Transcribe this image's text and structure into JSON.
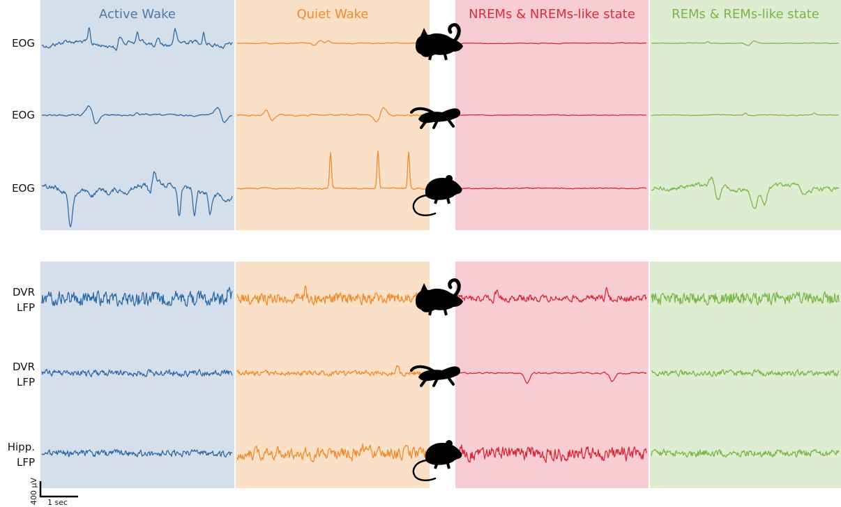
{
  "states": [
    {
      "key": "active_wake",
      "label": "Active Wake",
      "bg": "#d4dfeb",
      "trace": "#2e6aa6",
      "label_color": "#4a79aa"
    },
    {
      "key": "quiet_wake",
      "label": "Quiet Wake",
      "bg": "#fbe0c8",
      "trace": "#ef8b2c",
      "label_color": "#ef8b2c"
    },
    {
      "key": "nrem",
      "label": "NREMs & NREMs-like state",
      "bg": "#f7ccd3",
      "trace": "#d82a36",
      "label_color": "#d72f3a"
    },
    {
      "key": "rem",
      "label": "REMs & REMs-like state",
      "bg": "#deecd2",
      "trace": "#79b848",
      "label_color": "#7ab548"
    }
  ],
  "rows": [
    {
      "label": [
        "EOG"
      ],
      "animal": "lizard-icon"
    },
    {
      "label": [
        "EOG"
      ],
      "animal": "bearded-dragon-icon"
    },
    {
      "label": [
        "EOG"
      ],
      "animal": "rat-icon"
    },
    {
      "label": [
        "DVR",
        "LFP"
      ],
      "animal": "lizard-icon"
    },
    {
      "label": [
        "DVR",
        "LFP"
      ],
      "animal": "bearded-dragon-icon"
    },
    {
      "label": [
        "Hipp.",
        "LFP"
      ],
      "animal": "rat-icon"
    }
  ],
  "scale_bar": {
    "amplitude": "400 µV",
    "time": "1 sec"
  }
}
